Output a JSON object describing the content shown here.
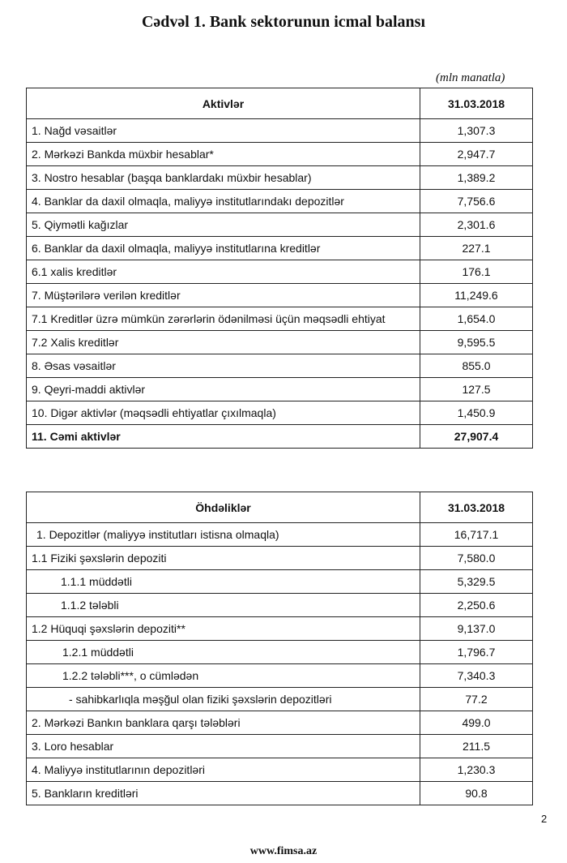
{
  "title": "Cədvəl 1. Bank sektorunun icmal balansı",
  "unit": "(mln manatla)",
  "assets": {
    "header": [
      "Aktivlər",
      "31.03.2018"
    ],
    "rows": [
      [
        "1. Nağd vəsaitlər",
        "1,307.3"
      ],
      [
        "2. Mərkəzi Bankda müxbir hesablar*",
        "2,947.7"
      ],
      [
        "3. Nostro hesablar (başqa banklardakı müxbir hesablar)",
        "1,389.2"
      ],
      [
        "4. Banklar da daxil olmaqla, maliyyə institutlarındakı depozitlər",
        "7,756.6"
      ],
      [
        "5. Qiymətli kağızlar",
        "2,301.6"
      ],
      [
        "6. Banklar da daxil olmaqla, maliyyə institutlarına kreditlər",
        "227.1"
      ],
      [
        "6.1  xalis kreditlər",
        "176.1"
      ],
      [
        "7. Müştərilərə verilən kreditlər",
        "11,249.6"
      ],
      [
        "7.1 Kreditlər üzrə mümkün zərərlərin ödənilməsi üçün məqsədli ehtiyat",
        "1,654.0"
      ],
      [
        "7.2 Xalis kreditlər",
        "9,595.5"
      ],
      [
        "8.  Əsas vəsaitlər",
        "855.0"
      ],
      [
        "9. Qeyri-maddi aktivlər",
        "127.5"
      ],
      [
        "10. Digər aktivlər (məqsədli ehtiyatlar çıxılmaqla)",
        "1,450.9"
      ],
      [
        "11. Cəmi aktivlər",
        "27,907.4"
      ]
    ]
  },
  "liabilities": {
    "header": [
      "Öhdəliklər",
      "31.03.2018"
    ],
    "rows": [
      [
        "1. Depozitlər (maliyyə institutları istisna olmaqla)",
        "16,717.1"
      ],
      [
        "1.1 Fiziki şəxslərin depoziti",
        "7,580.0"
      ],
      [
        "1.1.1 müddətli",
        "5,329.5"
      ],
      [
        "1.1.2 tələbli",
        "2,250.6"
      ],
      [
        "1.2 Hüquqi şəxslərin depoziti**",
        "9,137.0"
      ],
      [
        "1.2.1 müddətli",
        "1,796.7"
      ],
      [
        "1.2.2 tələbli***, o cümlədən",
        "7,340.3"
      ],
      [
        "- sahibkarlıqla məşğul olan fiziki şəxslərin depozitləri",
        "77.2"
      ],
      [
        "2. Mərkəzi Bankın banklara qarşı tələbləri",
        "499.0"
      ],
      [
        "3. Loro hesablar",
        "211.5"
      ],
      [
        "4. Maliyyə institutlarının  depozitləri",
        "1,230.3"
      ],
      [
        "5. Bankların kreditləri",
        "90.8"
      ]
    ]
  },
  "page_number": "2",
  "footer": "www.fimsa.az"
}
